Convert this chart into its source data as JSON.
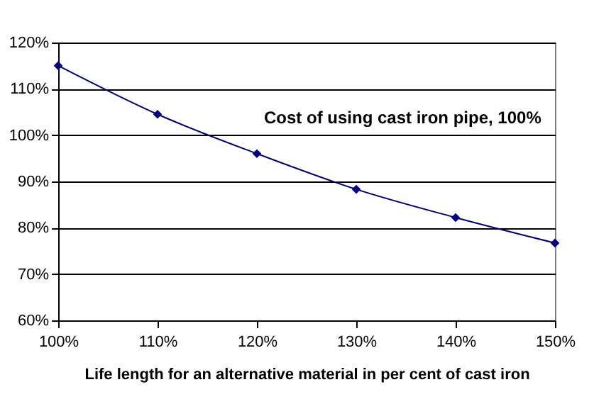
{
  "chart_data": {
    "type": "line",
    "xlabel": "Life length for an alternative material in per cent of cast iron",
    "x": [
      100,
      110,
      120,
      130,
      140,
      150
    ],
    "series": [
      {
        "color": "#000080",
        "values": [
          115,
          104.5,
          96,
          88.3,
          82.2,
          76.7
        ]
      }
    ],
    "xlim": [
      100,
      150
    ],
    "xticks": [
      {
        "value": 100,
        "label": "100%"
      },
      {
        "value": 110,
        "label": "110%"
      },
      {
        "value": 120,
        "label": "120%"
      },
      {
        "value": 130,
        "label": "130%"
      },
      {
        "value": 140,
        "label": "140%"
      },
      {
        "value": 150,
        "label": "150%"
      }
    ],
    "ylim": [
      60,
      120
    ],
    "yticks": [
      {
        "value": 60,
        "label": "60%"
      },
      {
        "value": 70,
        "label": "70%"
      },
      {
        "value": 80,
        "label": "80%"
      },
      {
        "value": 90,
        "label": "90%"
      },
      {
        "value": 100,
        "label": "100%"
      },
      {
        "value": 110,
        "label": "110%"
      },
      {
        "value": 120,
        "label": "120%"
      }
    ],
    "annotations": [
      "Cost of using cast iron pipe, 100%"
    ],
    "grid": "y",
    "marker": "diamond",
    "line_style": "solid",
    "legend": false
  }
}
